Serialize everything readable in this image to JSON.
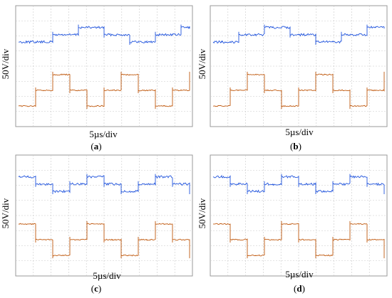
{
  "chart_data": [
    {
      "type": "line",
      "panel": "(a)",
      "ylabel": "50V/div",
      "xlabel": "5µs/div",
      "grid": true,
      "x": [
        0,
        0.5,
        1.0,
        1.5,
        2.0,
        2.5,
        3.0,
        3.5,
        4.0,
        4.5,
        5.0,
        5.5,
        6.0,
        6.5,
        7.0,
        7.5,
        8.0,
        8.5,
        9.0,
        9.5,
        10.0
      ],
      "series": [
        {
          "trace": "ch1",
          "color": "#2255dd",
          "values": [
            0.0,
            0.0,
            0.0,
            0.0,
            0.5,
            0.5,
            0.5,
            1.0,
            1.0,
            1.0,
            0.5,
            0.5,
            0.5,
            0.0,
            0.0,
            0.0,
            0.5,
            0.5,
            0.5,
            1.0,
            1.0
          ]
        },
        {
          "trace": "ch2",
          "color": "#c05a10",
          "values": [
            -1.0,
            -1.0,
            0.0,
            0.0,
            1.0,
            1.0,
            0.0,
            0.0,
            -1.0,
            -1.0,
            0.0,
            0.0,
            1.0,
            1.0,
            0.0,
            0.0,
            -1.0,
            -1.0,
            0.0,
            0.0,
            1.0
          ]
        }
      ]
    },
    {
      "type": "line",
      "panel": "(b)",
      "ylabel": "50V/div",
      "xlabel": "5µs/div",
      "grid": true,
      "x": [
        0,
        0.5,
        1.0,
        1.5,
        2.0,
        2.5,
        3.0,
        3.5,
        4.0,
        4.5,
        5.0,
        5.5,
        6.0,
        6.5,
        7.0,
        7.5,
        8.0,
        8.5,
        9.0,
        9.5,
        10.0
      ],
      "series": [
        {
          "trace": "ch1",
          "color": "#2255dd",
          "values": [
            0.0,
            0.0,
            0.0,
            0.5,
            0.5,
            0.5,
            1.0,
            1.0,
            1.0,
            0.5,
            0.5,
            0.5,
            0.0,
            0.0,
            0.0,
            0.5,
            0.5,
            0.5,
            1.0,
            1.0,
            1.0
          ]
        },
        {
          "trace": "ch2",
          "color": "#c05a10",
          "values": [
            -1.0,
            -1.0,
            0.0,
            0.0,
            1.0,
            1.0,
            0.0,
            0.0,
            -1.0,
            -1.0,
            0.0,
            0.0,
            1.0,
            1.0,
            0.0,
            0.0,
            -1.0,
            -1.0,
            0.0,
            0.0,
            1.0
          ]
        }
      ]
    },
    {
      "type": "line",
      "panel": "(c)",
      "ylabel": "50V/div",
      "xlabel": "5µs/div",
      "grid": true,
      "x": [
        0,
        0.5,
        1.0,
        1.5,
        2.0,
        2.5,
        3.0,
        3.5,
        4.0,
        4.5,
        5.0,
        5.5,
        6.0,
        6.5,
        7.0,
        7.5,
        8.0,
        8.5,
        9.0,
        9.5,
        10.0
      ],
      "series": [
        {
          "trace": "ch1",
          "color": "#2255dd",
          "values": [
            1.0,
            1.0,
            0.5,
            0.5,
            0.0,
            0.0,
            0.5,
            0.5,
            1.0,
            1.0,
            0.5,
            0.5,
            0.0,
            0.0,
            0.5,
            0.5,
            1.0,
            1.0,
            0.5,
            0.5,
            0.0
          ]
        },
        {
          "trace": "ch2",
          "color": "#c05a10",
          "values": [
            1.0,
            1.0,
            0.0,
            0.0,
            -1.0,
            -1.0,
            0.0,
            0.0,
            1.0,
            1.0,
            0.0,
            0.0,
            -1.0,
            -1.0,
            0.0,
            0.0,
            1.0,
            1.0,
            0.0,
            0.0,
            -1.0
          ]
        }
      ]
    },
    {
      "type": "line",
      "panel": "(d)",
      "ylabel": "50V/div",
      "xlabel": "5µs/div",
      "grid": true,
      "x": [
        0,
        0.5,
        1.0,
        1.5,
        2.0,
        2.5,
        3.0,
        3.5,
        4.0,
        4.5,
        5.0,
        5.5,
        6.0,
        6.5,
        7.0,
        7.5,
        8.0,
        8.5,
        9.0,
        9.5,
        10.0
      ],
      "series": [
        {
          "trace": "ch1",
          "color": "#2255dd",
          "values": [
            1.0,
            1.0,
            0.5,
            0.5,
            0.0,
            0.0,
            0.5,
            0.5,
            1.0,
            1.0,
            0.5,
            0.5,
            0.0,
            0.0,
            0.5,
            0.5,
            1.0,
            1.0,
            0.5,
            0.5,
            0.0
          ]
        },
        {
          "trace": "ch2",
          "color": "#c05a10",
          "values": [
            1.0,
            1.0,
            0.0,
            0.0,
            -1.0,
            -1.0,
            0.0,
            0.0,
            1.0,
            1.0,
            0.0,
            0.0,
            -1.0,
            -1.0,
            0.0,
            0.0,
            1.0,
            1.0,
            0.0,
            0.0,
            -1.0
          ]
        }
      ]
    }
  ],
  "panels": [
    {
      "ylabel": "50V/div",
      "xlabel": "5µs/div",
      "caption": "(a)"
    },
    {
      "ylabel": "50V/div",
      "xlabel": "5µs/div",
      "caption": "(b)"
    },
    {
      "ylabel": "50V/div",
      "xlabel": "5µs/div",
      "caption": "(c)"
    },
    {
      "ylabel": "50V/div",
      "xlabel": "5µs/div",
      "caption": "(d)"
    }
  ],
  "colors": {
    "grid": "#c8c8c8",
    "frame": "#9a9a9a",
    "ch1": "#2255dd",
    "ch2": "#c05a10"
  }
}
